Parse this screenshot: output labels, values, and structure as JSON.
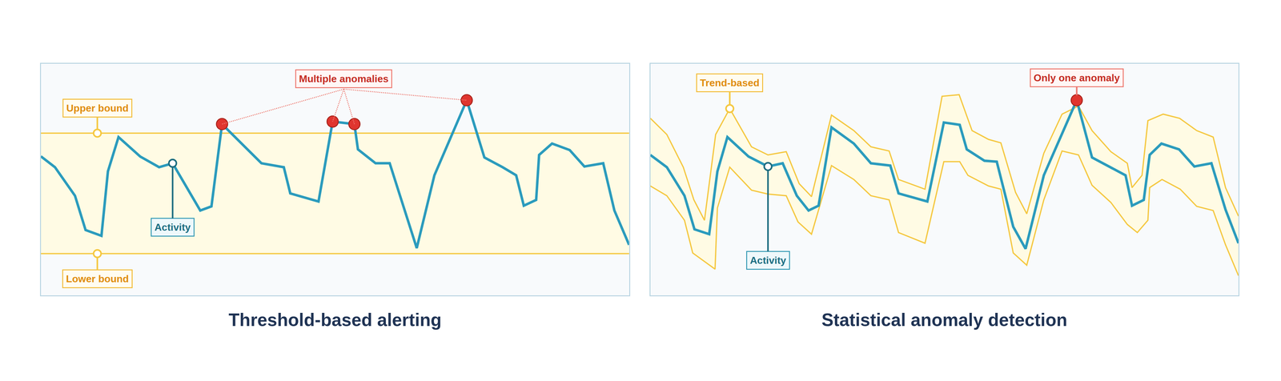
{
  "chart_data": [
    {
      "type": "line",
      "title": "Threshold-based alerting",
      "xlim": [
        0,
        100
      ],
      "ylim": [
        0,
        100
      ],
      "tick_labels": false,
      "grid": false,
      "series": [
        {
          "name": "Activity",
          "color": "#2b9bbd",
          "x": [
            0,
            2.4,
            5.8,
            7.6,
            10.3,
            11.4,
            13.2,
            16.9,
            20.1,
            22.4,
            27.1,
            29.0,
            30.8,
            34.4,
            37.5,
            41.3,
            42.4,
            47.2,
            49.6,
            53.3,
            53.9,
            56.9,
            59.3,
            63.9,
            66.9,
            72.4,
            75.4,
            78.5,
            80.8,
            82.1,
            84.2,
            84.7,
            86.9,
            89.9,
            92.4,
            95.6,
            97.5,
            100
          ],
          "values": [
            60.0,
            55.3,
            43.0,
            28.2,
            25.7,
            53.5,
            68.3,
            59.9,
            55.3,
            57.0,
            36.6,
            38.4,
            73.9,
            64.8,
            57.0,
            55.3,
            44.0,
            40.5,
            75.0,
            73.9,
            63.0,
            57.0,
            57.0,
            20.4,
            51.8,
            84.2,
            59.5,
            55.3,
            51.8,
            38.7,
            41.2,
            60.6,
            65.5,
            62.7,
            55.6,
            57.0,
            36.6,
            21.8
          ]
        }
      ],
      "highlight_x": 22.4,
      "bounds": {
        "color": "#f5c842",
        "upper": {
          "label": "Upper bound",
          "value": 70
        },
        "lower": {
          "label": "Lower bound",
          "value": 18
        }
      },
      "anomalies": {
        "label": "Multiple anomalies",
        "color": "#e0352f",
        "x": [
          30.8,
          49.6,
          53.3,
          72.4
        ]
      }
    },
    {
      "type": "line",
      "title": "Statistical anomaly detection",
      "xlim": [
        0,
        100
      ],
      "ylim": [
        0,
        100
      ],
      "tick_labels": false,
      "grid": false,
      "series": [
        {
          "name": "Activity",
          "color": "#2b9bbd",
          "x": [
            0,
            2.8,
            5.8,
            7.5,
            10.0,
            11.4,
            13.1,
            16.7,
            20.0,
            22.5,
            24.9,
            26.9,
            28.6,
            30.8,
            34.6,
            37.5,
            40.8,
            42.2,
            47.1,
            49.9,
            52.6,
            53.8,
            56.8,
            58.9,
            61.7,
            63.8,
            66.9,
            72.5,
            75.1,
            78.3,
            80.8,
            81.9,
            83.9,
            84.9,
            86.9,
            89.9,
            92.5,
            95.4,
            97.8,
            100
          ],
          "values": [
            60.6,
            55.3,
            43.0,
            28.5,
            26.4,
            53.5,
            68.3,
            59.9,
            55.6,
            57.0,
            43.0,
            36.6,
            38.7,
            72.5,
            65.5,
            57.0,
            56.0,
            44.0,
            40.5,
            74.6,
            73.6,
            63.0,
            58.1,
            57.7,
            29.6,
            20.1,
            51.8,
            84.2,
            59.5,
            55.3,
            51.8,
            38.7,
            41.2,
            60.6,
            65.5,
            63.0,
            55.6,
            57.0,
            37.0,
            22.5
          ]
        }
      ],
      "highlight_x": 20.0,
      "band": {
        "label": "Trend-based",
        "color": "#f5c842",
        "label_x": 13.5,
        "upper": {
          "x": [
            0,
            2.8,
            5.6,
            7.4,
            9.2,
            11.1,
            13.5,
            17.2,
            20.0,
            23.1,
            25.3,
            27.4,
            30.8,
            34.6,
            37.5,
            40.6,
            42.2,
            46.7,
            49.6,
            52.5,
            54.7,
            57.5,
            59.6,
            62.1,
            64.0,
            66.9,
            70.0,
            72.8,
            75.1,
            78.3,
            81.1,
            81.9,
            83.6,
            84.6,
            87.2,
            90.0,
            92.9,
            95.7,
            97.8,
            100
          ],
          "values": [
            76.4,
            69.4,
            55.3,
            41.2,
            32.4,
            69.4,
            80.6,
            64.1,
            60.6,
            62.0,
            48.2,
            42.6,
            77.8,
            71.1,
            64.1,
            62.3,
            50.0,
            45.8,
            85.9,
            86.6,
            71.1,
            67.3,
            65.8,
            44.4,
            35.2,
            61.3,
            78.2,
            81.7,
            71.1,
            62.0,
            57.0,
            46.5,
            51.8,
            75.4,
            78.2,
            76.4,
            71.1,
            68.3,
            46.5,
            34.2
          ]
        },
        "lower": {
          "x": [
            0,
            2.8,
            5.8,
            7.2,
            11.0,
            11.4,
            13.5,
            17.2,
            20.0,
            23.1,
            25.1,
            27.4,
            30.8,
            34.6,
            37.5,
            40.6,
            42.2,
            46.7,
            49.9,
            52.6,
            54.0,
            57.5,
            59.6,
            61.7,
            64.0,
            66.9,
            70.0,
            72.8,
            75.1,
            78.3,
            81.1,
            82.8,
            84.6,
            84.9,
            87.0,
            90.1,
            92.9,
            95.7,
            97.8,
            100
          ],
          "values": [
            47.2,
            43.0,
            32.4,
            18.3,
            11.3,
            37.7,
            55.3,
            45.4,
            43.7,
            43.0,
            31.7,
            26.4,
            56.0,
            50.0,
            43.0,
            41.2,
            27.1,
            22.5,
            57.7,
            57.7,
            51.8,
            47.2,
            45.8,
            18.3,
            13.0,
            41.2,
            62.3,
            60.6,
            47.5,
            40.1,
            30.6,
            27.1,
            32.4,
            46.5,
            50.0,
            45.8,
            38.4,
            36.6,
            21.8,
            8.5
          ]
        }
      },
      "anomalies": {
        "label": "Only one anomaly",
        "color": "#e0352f",
        "x": [
          72.5
        ]
      }
    }
  ]
}
